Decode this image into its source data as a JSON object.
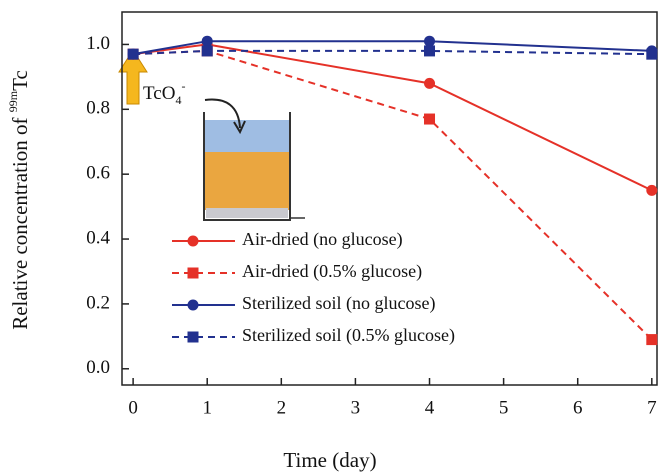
{
  "chart_data": {
    "type": "line",
    "xlabel": "Time (day)",
    "ylabel": [
      "Relative concentration of ",
      "99m",
      "Tc"
    ],
    "annotation": [
      "TcO",
      "4",
      "-"
    ],
    "x": [
      0,
      1,
      4,
      7
    ],
    "series": [
      {
        "name": "Air-dried (no glucose)",
        "color": "#e53128",
        "linestyle": "solid",
        "marker": "circle",
        "values": [
          0.97,
          1.0,
          0.88,
          0.55
        ]
      },
      {
        "name": "Air-dried (0.5% glucose)",
        "color": "#e53128",
        "linestyle": "dashed",
        "marker": "square",
        "values": [
          0.97,
          0.98,
          0.77,
          0.09
        ]
      },
      {
        "name": "Sterilized soil (no glucose)",
        "color": "#22318f",
        "linestyle": "solid",
        "marker": "circle",
        "values": [
          0.97,
          1.01,
          1.01,
          0.98
        ]
      },
      {
        "name": "Sterilized soil (0.5% glucose)",
        "color": "#22318f",
        "linestyle": "dashed",
        "marker": "square",
        "values": [
          0.97,
          0.98,
          0.98,
          0.97
        ]
      }
    ],
    "xlim": [
      -0.15,
      7.07
    ],
    "xticks": [
      0,
      1,
      2,
      3,
      4,
      5,
      6,
      7
    ],
    "ylim": [
      -0.05,
      1.1
    ],
    "yticks": [
      {
        "value": 0,
        "label": "0.0"
      },
      0.2,
      0.4,
      0.6,
      0.8,
      {
        "value": 1,
        "label": "1.0"
      }
    ]
  }
}
